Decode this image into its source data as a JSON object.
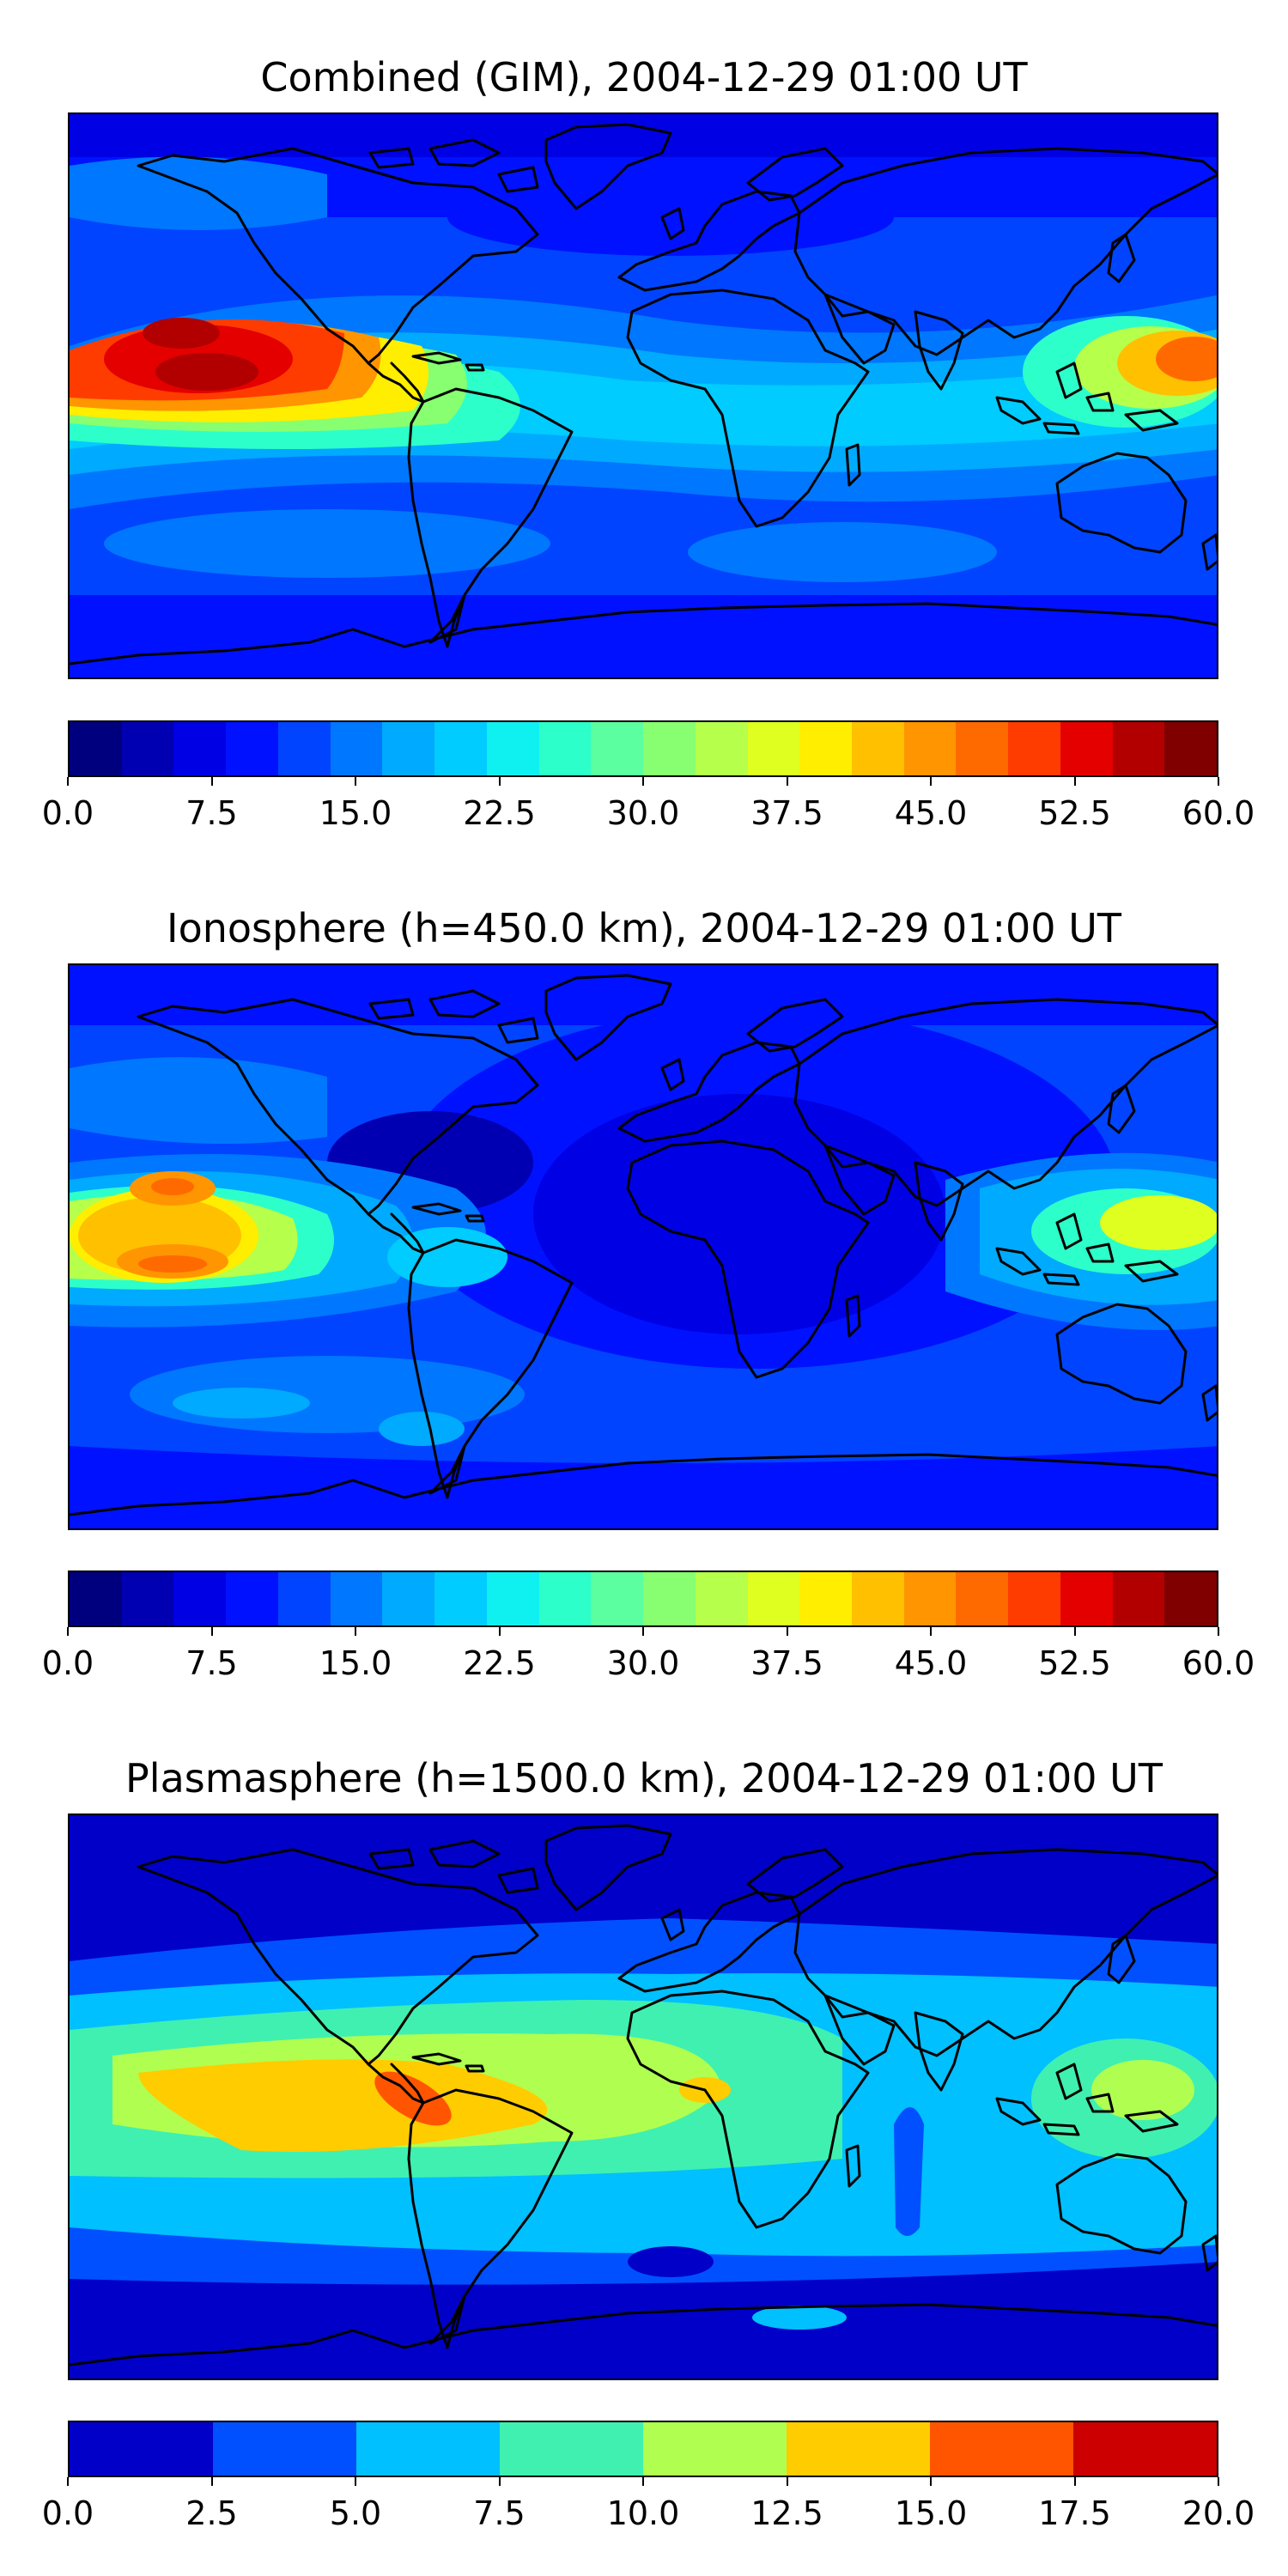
{
  "panels": [
    {
      "title": "Combined (GIM), 2004-12-29 01:00 UT",
      "colorbar": {
        "colors": [
          "#00007f",
          "#0000b2",
          "#0000e5",
          "#0011ff",
          "#0044ff",
          "#0077ff",
          "#00aaff",
          "#00ccff",
          "#0ff0f0",
          "#2dffca",
          "#5bffa0",
          "#88ff70",
          "#b6ff4a",
          "#dfff20",
          "#ffee00",
          "#ffc000",
          "#ff9500",
          "#ff6a00",
          "#ff3c00",
          "#e50000",
          "#b20000",
          "#800000"
        ],
        "tick_labels": [
          "0.0",
          "7.5",
          "15.0",
          "22.5",
          "30.0",
          "37.5",
          "45.0",
          "52.5",
          "60.0"
        ]
      }
    },
    {
      "title": "Ionosphere  (h=450.0 km), 2004-12-29 01:00 UT",
      "colorbar": {
        "colors": [
          "#00007f",
          "#0000b2",
          "#0000e5",
          "#0011ff",
          "#0044ff",
          "#0077ff",
          "#00aaff",
          "#00ccff",
          "#0ff0f0",
          "#2dffca",
          "#5bffa0",
          "#88ff70",
          "#b6ff4a",
          "#dfff20",
          "#ffee00",
          "#ffc000",
          "#ff9500",
          "#ff6a00",
          "#ff3c00",
          "#e50000",
          "#b20000",
          "#800000"
        ],
        "tick_labels": [
          "0.0",
          "7.5",
          "15.0",
          "22.5",
          "30.0",
          "37.5",
          "45.0",
          "52.5",
          "60.0"
        ]
      }
    },
    {
      "title": "Plasmasphere (h=1500.0 km), 2004-12-29 01:00 UT",
      "colorbar": {
        "colors": [
          "#0000c8",
          "#0050ff",
          "#00c0ff",
          "#40f0b0",
          "#b0ff50",
          "#ffcc00",
          "#ff5500",
          "#cc0000"
        ],
        "tick_labels": [
          "0.0",
          "2.5",
          "5.0",
          "7.5",
          "10.0",
          "12.5",
          "15.0",
          "17.5",
          "20.0"
        ]
      }
    }
  ]
}
